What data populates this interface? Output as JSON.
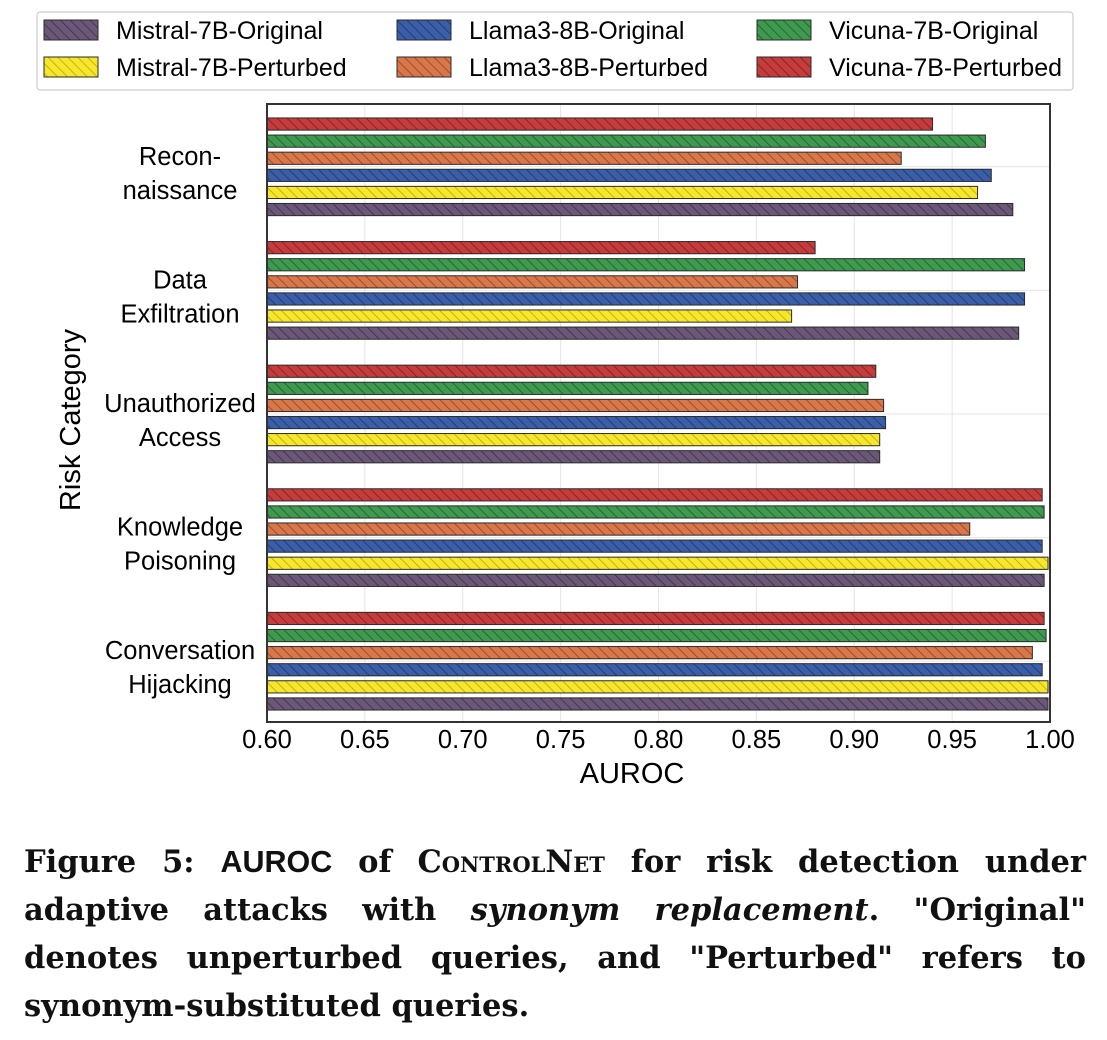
{
  "chart_data": {
    "type": "bar",
    "orientation": "horizontal",
    "categories": [
      "Recon- naissance",
      "Data Exfiltration",
      "Unauthorized Access",
      "Knowledge Poisoning",
      "Conversation Hijacking"
    ],
    "category_lines": [
      [
        "Recon-",
        "naissance"
      ],
      [
        "Data",
        "Exfiltration"
      ],
      [
        "Unauthorized",
        "Access"
      ],
      [
        "Knowledge",
        "Poisoning"
      ],
      [
        "Conversation",
        "Hijacking"
      ]
    ],
    "series": [
      {
        "name": "Mistral-7B-Original",
        "values": [
          0.981,
          0.984,
          0.913,
          0.997,
          0.999
        ],
        "color": "#6b5878",
        "hatch": "#3d2f47"
      },
      {
        "name": "Mistral-7B-Perturbed",
        "values": [
          0.963,
          0.868,
          0.913,
          0.999,
          0.999
        ],
        "color": "#f7e62e",
        "hatch": "#b8a800"
      },
      {
        "name": "Llama3-8B-Original",
        "values": [
          0.97,
          0.987,
          0.916,
          0.996,
          0.996
        ],
        "color": "#3b5ea8",
        "hatch": "#1e3568"
      },
      {
        "name": "Llama3-8B-Perturbed",
        "values": [
          0.924,
          0.871,
          0.915,
          0.959,
          0.991
        ],
        "color": "#d9774a",
        "hatch": "#8e4424"
      },
      {
        "name": "Vicuna-7B-Original",
        "values": [
          0.967,
          0.987,
          0.907,
          0.997,
          0.998
        ],
        "color": "#3f9a50",
        "hatch": "#1f5c2b"
      },
      {
        "name": "Vicuna-7B-Perturbed",
        "values": [
          0.94,
          0.88,
          0.911,
          0.996,
          0.997
        ],
        "color": "#c63c3c",
        "hatch": "#7a1f1f"
      }
    ],
    "legend_order": [
      "Mistral-7B-Original",
      "Llama3-8B-Original",
      "Vicuna-7B-Original",
      "Mistral-7B-Perturbed",
      "Llama3-8B-Perturbed",
      "Vicuna-7B-Perturbed"
    ],
    "xlabel": "AUROC",
    "ylabel": "Risk Category",
    "xlim": [
      0.6,
      1.0
    ],
    "xticks": [
      "0.60",
      "0.65",
      "0.70",
      "0.75",
      "0.80",
      "0.85",
      "0.90",
      "0.95",
      "1.00"
    ],
    "grid": true,
    "legend_position": "top"
  },
  "caption": {
    "label": "Figure 5: ",
    "metric": "AUROC",
    "of": " of ",
    "system": "ControlNet",
    "text1": " for risk detection under adaptive attacks with ",
    "emph": "synonym replacement",
    "text2": ". \"Original\" denotes unperturbed queries, and \"Perturbed\" refers to synonym-substituted queries."
  }
}
